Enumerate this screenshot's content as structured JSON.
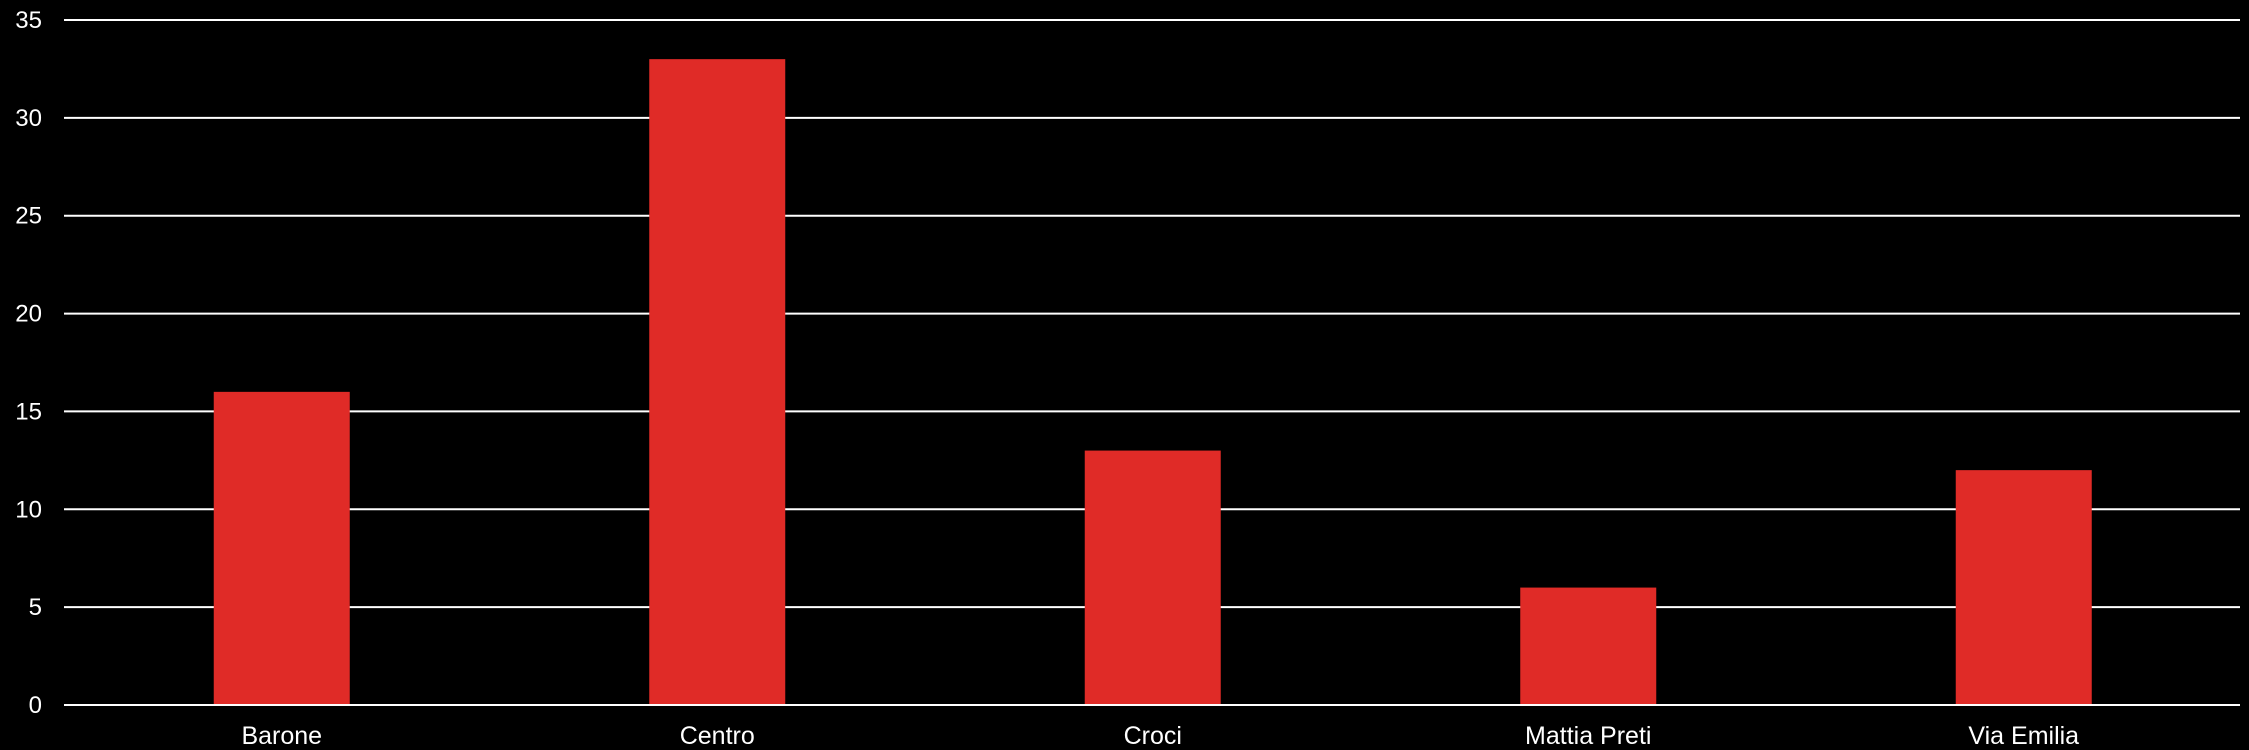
{
  "chart_data": {
    "type": "bar",
    "categories": [
      "Barone",
      "Centro",
      "Croci",
      "Mattia Preti",
      "Via Emilia"
    ],
    "values": [
      16,
      33,
      13,
      6,
      12
    ],
    "title": "",
    "xlabel": "",
    "ylabel": "",
    "ylim": [
      0,
      35
    ],
    "yticks": [
      0,
      5,
      10,
      15,
      20,
      25,
      30,
      35
    ],
    "grid": true,
    "legend": "none"
  },
  "colors": {
    "background": "#000000",
    "bar": "#e02b27",
    "grid": "#ffffff",
    "text": "#ffffff"
  }
}
